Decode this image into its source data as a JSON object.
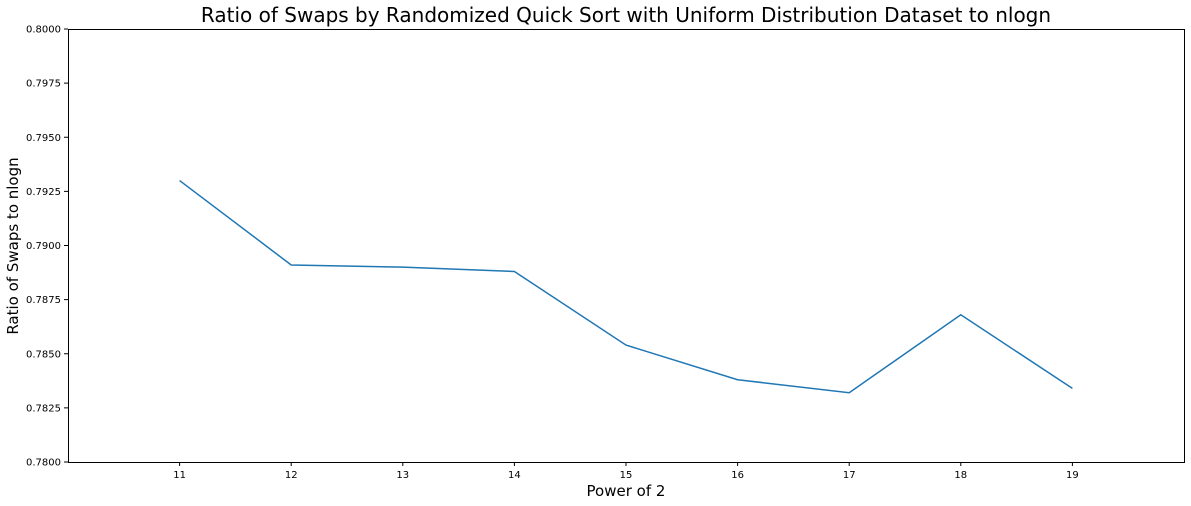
{
  "chart_data": {
    "type": "line",
    "title": "Ratio of Swaps by Randomized Quick Sort with Uniform Distribution Dataset to nlogn",
    "xlabel": "Power of 2",
    "ylabel": "Ratio of Swaps to nlogn",
    "x": [
      11,
      12,
      13,
      14,
      15,
      16,
      17,
      18,
      19
    ],
    "series": [
      {
        "values": [
          0.793,
          0.7891,
          0.789,
          0.7888,
          0.7854,
          0.7838,
          0.7832,
          0.7868,
          0.7834
        ]
      }
    ],
    "xlim": [
      10,
      20
    ],
    "ylim": [
      0.78,
      0.8
    ],
    "x_ticks": [
      "11",
      "12",
      "13",
      "14",
      "15",
      "16",
      "17",
      "18",
      "19"
    ],
    "y_ticks": [
      "0.7800",
      "0.7825",
      "0.7850",
      "0.7875",
      "0.7900",
      "0.7925",
      "0.7950",
      "0.7975",
      "0.8000"
    ],
    "grid": false,
    "line_color": "#1f77b4"
  }
}
